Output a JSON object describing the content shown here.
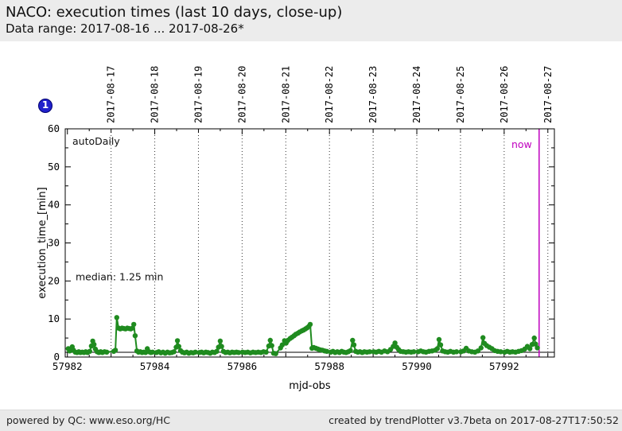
{
  "header": {
    "title": "NACO: execution times (last 10 days, close-up)",
    "subtitle": "Data range: 2017-08-16 ... 2017-08-26*"
  },
  "badge": {
    "label": "1",
    "fill": "#2121cc",
    "border": "#000070"
  },
  "footer": {
    "left": "powered by QC: www.eso.org/HC",
    "right": "created by trendPlotter v3.7beta on 2017-08-27T17:50:52"
  },
  "chart_data": {
    "type": "line",
    "inplot_label": "autoDaily",
    "xlabel": "mjd-obs",
    "ylabel": "execution_time_[min]",
    "xlim": [
      57981.95,
      57993.15
    ],
    "ylim": [
      0,
      60
    ],
    "x_major_ticks": [
      57982,
      57984,
      57986,
      57988,
      57990,
      57992
    ],
    "x_mid_tick_step": 1,
    "x_minor_step": 0.5,
    "y_major_ticks": [
      0,
      10,
      20,
      30,
      40,
      50,
      60
    ],
    "y_minor_step": 5,
    "grid": "vertical-dotted",
    "date_gridlines": [
      {
        "mjd": 57983,
        "label": "2017-08-17"
      },
      {
        "mjd": 57984,
        "label": "2017-08-18"
      },
      {
        "mjd": 57985,
        "label": "2017-08-19"
      },
      {
        "mjd": 57986,
        "label": "2017-08-20"
      },
      {
        "mjd": 57987,
        "label": "2017-08-21"
      },
      {
        "mjd": 57988,
        "label": "2017-08-22"
      },
      {
        "mjd": 57989,
        "label": "2017-08-23"
      },
      {
        "mjd": 57990,
        "label": "2017-08-24"
      },
      {
        "mjd": 57991,
        "label": "2017-08-25"
      },
      {
        "mjd": 57992,
        "label": "2017-08-26"
      },
      {
        "mjd": 57993,
        "label": "2017-08-27"
      }
    ],
    "median": {
      "value": 1.25,
      "label": "median: 1.25 min"
    },
    "now": {
      "mjd": 57992.8,
      "label": "now",
      "color": "#bf00bf"
    },
    "series": [
      {
        "name": "execution_time",
        "color": "#1f8b1f",
        "points": [
          [
            57982.02,
            2.2
          ],
          [
            57982.05,
            1.6
          ],
          [
            57982.08,
            2.0
          ],
          [
            57982.11,
            2.7
          ],
          [
            57982.14,
            1.8
          ],
          [
            57982.18,
            1.3
          ],
          [
            57982.22,
            1.2
          ],
          [
            57982.26,
            1.4
          ],
          [
            57982.3,
            1.2
          ],
          [
            57982.34,
            1.3
          ],
          [
            57982.38,
            1.2
          ],
          [
            57982.42,
            1.4
          ],
          [
            57982.46,
            1.2
          ],
          [
            57982.51,
            1.5
          ],
          [
            57982.55,
            2.9
          ],
          [
            57982.58,
            4.2
          ],
          [
            57982.61,
            3.3
          ],
          [
            57982.64,
            2.1
          ],
          [
            57982.68,
            1.4
          ],
          [
            57982.72,
            1.2
          ],
          [
            57982.76,
            1.4
          ],
          [
            57982.8,
            1.2
          ],
          [
            57982.85,
            1.4
          ],
          [
            57982.9,
            1.3
          ],
          [
            57983.06,
            1.5
          ],
          [
            57983.1,
            1.8
          ],
          [
            57983.13,
            10.4
          ],
          [
            57983.17,
            7.6
          ],
          [
            57983.21,
            7.4
          ],
          [
            57983.25,
            7.6
          ],
          [
            57983.29,
            7.5
          ],
          [
            57983.33,
            7.4
          ],
          [
            57983.37,
            7.6
          ],
          [
            57983.41,
            7.5
          ],
          [
            57983.45,
            7.4
          ],
          [
            57983.49,
            7.6
          ],
          [
            57983.52,
            8.6
          ],
          [
            57983.55,
            5.6
          ],
          [
            57983.59,
            1.6
          ],
          [
            57983.63,
            1.3
          ],
          [
            57983.67,
            1.4
          ],
          [
            57983.71,
            1.2
          ],
          [
            57983.75,
            1.3
          ],
          [
            57983.79,
            1.2
          ],
          [
            57983.83,
            2.2
          ],
          [
            57983.87,
            1.4
          ],
          [
            57983.91,
            1.2
          ],
          [
            57983.95,
            1.3
          ],
          [
            57984.04,
            1.2
          ],
          [
            57984.09,
            1.4
          ],
          [
            57984.14,
            1.1
          ],
          [
            57984.19,
            1.3
          ],
          [
            57984.24,
            1.0
          ],
          [
            57984.29,
            1.3
          ],
          [
            57984.34,
            1.1
          ],
          [
            57984.39,
            1.2
          ],
          [
            57984.44,
            1.4
          ],
          [
            57984.49,
            2.6
          ],
          [
            57984.52,
            4.3
          ],
          [
            57984.55,
            2.8
          ],
          [
            57984.59,
            1.7
          ],
          [
            57984.63,
            1.3
          ],
          [
            57984.68,
            1.1
          ],
          [
            57984.73,
            1.3
          ],
          [
            57984.78,
            1.0
          ],
          [
            57984.83,
            1.2
          ],
          [
            57984.88,
            1.1
          ],
          [
            57984.93,
            1.3
          ],
          [
            57985.02,
            1.2
          ],
          [
            57985.07,
            1.3
          ],
          [
            57985.12,
            1.1
          ],
          [
            57985.17,
            1.3
          ],
          [
            57985.22,
            1.2
          ],
          [
            57985.27,
            1.0
          ],
          [
            57985.32,
            1.3
          ],
          [
            57985.37,
            1.2
          ],
          [
            57985.42,
            1.5
          ],
          [
            57985.46,
            2.6
          ],
          [
            57985.5,
            4.2
          ],
          [
            57985.53,
            2.8
          ],
          [
            57985.57,
            1.5
          ],
          [
            57985.62,
            1.2
          ],
          [
            57985.67,
            1.3
          ],
          [
            57985.72,
            1.1
          ],
          [
            57985.77,
            1.3
          ],
          [
            57985.82,
            1.2
          ],
          [
            57985.87,
            1.3
          ],
          [
            57985.92,
            1.2
          ],
          [
            57986.01,
            1.3
          ],
          [
            57986.07,
            1.2
          ],
          [
            57986.13,
            1.3
          ],
          [
            57986.19,
            1.1
          ],
          [
            57986.25,
            1.3
          ],
          [
            57986.31,
            1.2
          ],
          [
            57986.37,
            1.3
          ],
          [
            57986.43,
            1.2
          ],
          [
            57986.49,
            1.4
          ],
          [
            57986.55,
            1.3
          ],
          [
            57986.61,
            2.9
          ],
          [
            57986.645,
            4.4
          ],
          [
            57986.68,
            3.0
          ],
          [
            57986.72,
            1.0
          ],
          [
            57986.77,
            0.9
          ],
          [
            57986.88,
            2.4
          ],
          [
            57986.92,
            3.2
          ],
          [
            57986.97,
            4.3
          ],
          [
            57987.01,
            3.7
          ],
          [
            57987.05,
            4.4
          ],
          [
            57987.1,
            4.9
          ],
          [
            57987.14,
            5.2
          ],
          [
            57987.19,
            5.6
          ],
          [
            57987.23,
            6.0
          ],
          [
            57987.28,
            6.3
          ],
          [
            57987.32,
            6.6
          ],
          [
            57987.37,
            6.9
          ],
          [
            57987.41,
            7.1
          ],
          [
            57987.45,
            7.4
          ],
          [
            57987.49,
            7.7
          ],
          [
            57987.53,
            8.1
          ],
          [
            57987.56,
            8.6
          ],
          [
            57987.6,
            2.3
          ],
          [
            57987.64,
            2.5
          ],
          [
            57987.69,
            2.3
          ],
          [
            57987.74,
            2.1
          ],
          [
            57987.79,
            1.9
          ],
          [
            57987.84,
            1.8
          ],
          [
            57987.89,
            1.6
          ],
          [
            57987.94,
            1.5
          ],
          [
            57988.03,
            1.3
          ],
          [
            57988.08,
            1.5
          ],
          [
            57988.13,
            1.2
          ],
          [
            57988.18,
            1.4
          ],
          [
            57988.23,
            1.2
          ],
          [
            57988.28,
            1.5
          ],
          [
            57988.33,
            1.3
          ],
          [
            57988.38,
            1.2
          ],
          [
            57988.43,
            1.4
          ],
          [
            57988.48,
            1.7
          ],
          [
            57988.53,
            4.4
          ],
          [
            57988.56,
            3.2
          ],
          [
            57988.6,
            1.5
          ],
          [
            57988.65,
            1.3
          ],
          [
            57988.7,
            1.4
          ],
          [
            57988.75,
            1.2
          ],
          [
            57988.8,
            1.4
          ],
          [
            57988.86,
            1.3
          ],
          [
            57988.92,
            1.4
          ],
          [
            57989.01,
            1.4
          ],
          [
            57989.07,
            1.3
          ],
          [
            57989.13,
            1.5
          ],
          [
            57989.19,
            1.3
          ],
          [
            57989.26,
            1.6
          ],
          [
            57989.33,
            1.4
          ],
          [
            57989.4,
            2.0
          ],
          [
            57989.46,
            2.8
          ],
          [
            57989.5,
            3.7
          ],
          [
            57989.54,
            2.6
          ],
          [
            57989.58,
            2.0
          ],
          [
            57989.63,
            1.5
          ],
          [
            57989.69,
            1.4
          ],
          [
            57989.75,
            1.3
          ],
          [
            57989.81,
            1.4
          ],
          [
            57989.87,
            1.3
          ],
          [
            57989.93,
            1.4
          ],
          [
            57990.03,
            1.4
          ],
          [
            57990.09,
            1.6
          ],
          [
            57990.15,
            1.4
          ],
          [
            57990.21,
            1.3
          ],
          [
            57990.28,
            1.5
          ],
          [
            57990.35,
            1.6
          ],
          [
            57990.42,
            1.8
          ],
          [
            57990.47,
            2.2
          ],
          [
            57990.51,
            4.6
          ],
          [
            57990.545,
            3.2
          ],
          [
            57990.59,
            1.6
          ],
          [
            57990.65,
            1.4
          ],
          [
            57990.71,
            1.3
          ],
          [
            57990.77,
            1.5
          ],
          [
            57990.84,
            1.3
          ],
          [
            57990.91,
            1.4
          ],
          [
            57991.01,
            1.4
          ],
          [
            57991.07,
            1.6
          ],
          [
            57991.13,
            2.3
          ],
          [
            57991.19,
            1.6
          ],
          [
            57991.26,
            1.4
          ],
          [
            57991.33,
            1.3
          ],
          [
            57991.4,
            1.6
          ],
          [
            57991.47,
            2.4
          ],
          [
            57991.515,
            5.1
          ],
          [
            57991.55,
            3.6
          ],
          [
            57991.6,
            3.0
          ],
          [
            57991.66,
            2.6
          ],
          [
            57991.72,
            2.2
          ],
          [
            57991.78,
            1.7
          ],
          [
            57991.85,
            1.5
          ],
          [
            57991.92,
            1.4
          ],
          [
            57992.01,
            1.3
          ],
          [
            57992.07,
            1.5
          ],
          [
            57992.13,
            1.3
          ],
          [
            57992.19,
            1.4
          ],
          [
            57992.26,
            1.3
          ],
          [
            57992.33,
            1.5
          ],
          [
            57992.4,
            1.7
          ],
          [
            57992.47,
            2.1
          ],
          [
            57992.53,
            2.8
          ],
          [
            57992.59,
            2.2
          ],
          [
            57992.64,
            3.3
          ],
          [
            57992.69,
            5.0
          ],
          [
            57992.72,
            3.4
          ],
          [
            57992.76,
            2.4
          ]
        ]
      }
    ]
  }
}
